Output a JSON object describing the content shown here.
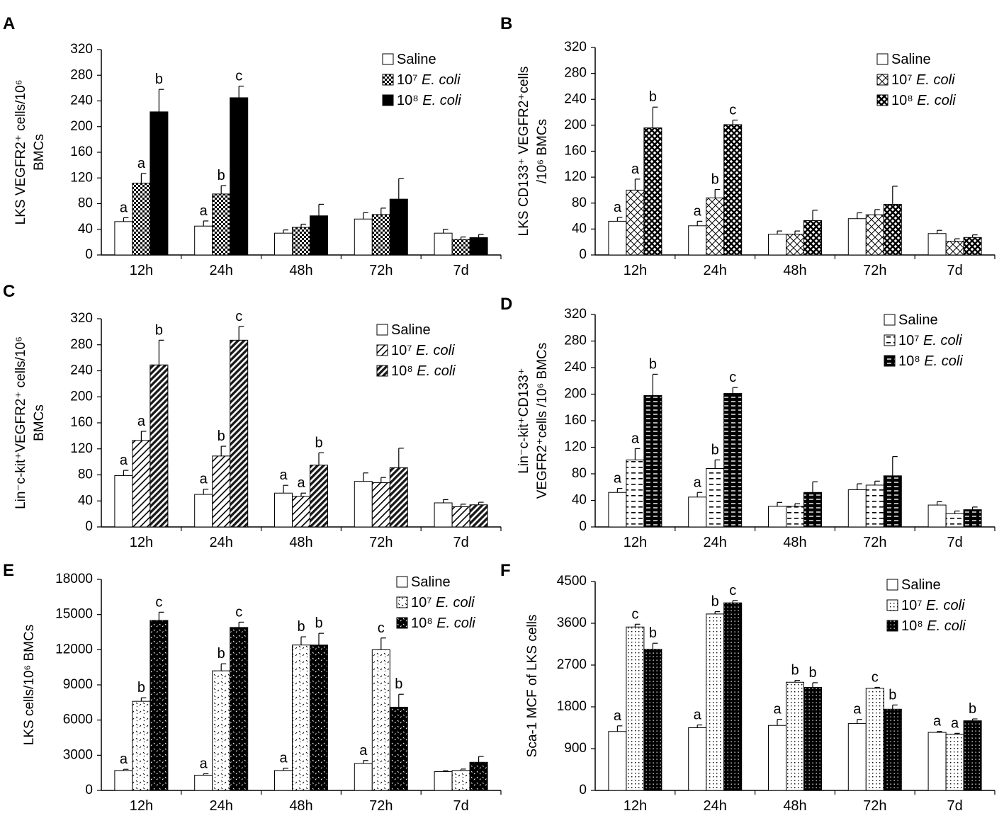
{
  "figure": {
    "title": ""
  },
  "chart_data": [
    {
      "panel": "A",
      "type": "bar",
      "ylabel_lines": [
        "LKS VEGFR2⁺ cells/10⁶",
        "BMCs"
      ],
      "ylim": [
        0,
        320
      ],
      "yticks": [
        0,
        40,
        80,
        120,
        160,
        200,
        240,
        280,
        320
      ],
      "categories": [
        "12h",
        "24h",
        "48h",
        "72h",
        "7d"
      ],
      "legend_loc": "top-right",
      "series": [
        {
          "name": "Saline",
          "legend_text": [
            "Saline",
            ""
          ],
          "pattern": "white",
          "values": [
            52,
            45,
            34,
            56,
            34
          ],
          "errors": [
            6,
            8,
            5,
            10,
            6
          ],
          "labels": [
            "a",
            "a",
            "",
            "",
            ""
          ]
        },
        {
          "name": "10^7 E. coli",
          "legend_text": [
            "10⁷ ",
            "E. coli"
          ],
          "pattern": "check",
          "values": [
            112,
            95,
            43,
            63,
            24
          ],
          "errors": [
            15,
            13,
            5,
            10,
            4
          ],
          "labels": [
            "a",
            "b",
            "",
            "",
            ""
          ]
        },
        {
          "name": "10^8 E. coli",
          "legend_text": [
            "10⁸ ",
            "E. coli"
          ],
          "pattern": "black",
          "values": [
            223,
            245,
            61,
            87,
            27
          ],
          "errors": [
            35,
            18,
            18,
            32,
            5
          ],
          "labels": [
            "b",
            "c",
            "",
            "",
            ""
          ]
        }
      ]
    },
    {
      "panel": "B",
      "type": "bar",
      "ylabel_lines": [
        "LKS CD133⁺ VEGFR2⁺cells",
        "/10⁶ BMCs"
      ],
      "ylim": [
        0,
        320
      ],
      "yticks": [
        0,
        40,
        80,
        120,
        160,
        200,
        240,
        280,
        320
      ],
      "categories": [
        "12h",
        "24h",
        "48h",
        "72h",
        "7d"
      ],
      "legend_loc": "top-right",
      "series": [
        {
          "name": "Saline",
          "legend_text": [
            "Saline",
            ""
          ],
          "pattern": "white",
          "values": [
            52,
            45,
            32,
            56,
            33
          ],
          "errors": [
            6,
            7,
            5,
            9,
            5
          ],
          "labels": [
            "a",
            "a",
            "",
            "",
            ""
          ]
        },
        {
          "name": "10^7 E. coli",
          "legend_text": [
            "10⁷ ",
            "E. coli"
          ],
          "pattern": "cross",
          "values": [
            100,
            88,
            32,
            62,
            21
          ],
          "errors": [
            17,
            13,
            5,
            8,
            4
          ],
          "labels": [
            "a",
            "b",
            "",
            "",
            ""
          ]
        },
        {
          "name": "10^8 E. coli",
          "legend_text": [
            "10⁸ ",
            "E. coli"
          ],
          "pattern": "darkcross",
          "values": [
            196,
            201,
            53,
            78,
            27
          ],
          "errors": [
            32,
            7,
            16,
            28,
            4
          ],
          "labels": [
            "b",
            "c",
            "",
            "",
            ""
          ]
        }
      ]
    },
    {
      "panel": "C",
      "type": "bar",
      "ylabel_lines": [
        "Lin⁻c-kit⁺VEGFR2⁺ cells/10⁶",
        "BMCs"
      ],
      "ylim": [
        0,
        320
      ],
      "yticks": [
        0,
        40,
        80,
        120,
        160,
        200,
        240,
        280,
        320
      ],
      "categories": [
        "12h",
        "24h",
        "48h",
        "72h",
        "7d"
      ],
      "legend_loc": "top-right",
      "series": [
        {
          "name": "Saline",
          "legend_text": [
            "Saline",
            ""
          ],
          "pattern": "white",
          "values": [
            79,
            50,
            52,
            70,
            37
          ],
          "errors": [
            8,
            8,
            12,
            13,
            5
          ],
          "labels": [
            "a",
            "a",
            "a",
            "",
            ""
          ]
        },
        {
          "name": "10^7 E. coli",
          "legend_text": [
            "10⁷ ",
            "E. coli"
          ],
          "pattern": "diag",
          "values": [
            133,
            109,
            47,
            68,
            31
          ],
          "errors": [
            14,
            15,
            5,
            8,
            4
          ],
          "labels": [
            "a",
            "b",
            "a",
            "",
            ""
          ]
        },
        {
          "name": "10^8 E. coli",
          "legend_text": [
            "10⁸ ",
            "E. coli"
          ],
          "pattern": "darkdiag",
          "values": [
            249,
            287,
            95,
            91,
            34
          ],
          "errors": [
            38,
            21,
            19,
            30,
            4
          ],
          "labels": [
            "b",
            "c",
            "b",
            "",
            ""
          ]
        }
      ]
    },
    {
      "panel": "D",
      "type": "bar",
      "ylabel_lines": [
        "Lin⁻c-kit⁺CD133⁺",
        "VEGFR2⁺cells /10⁶ BMCs"
      ],
      "ylim": [
        0,
        320
      ],
      "yticks": [
        0,
        40,
        80,
        120,
        160,
        200,
        240,
        280,
        320
      ],
      "categories": [
        "12h",
        "24h",
        "48h",
        "72h",
        "7d"
      ],
      "legend_loc": "top-right",
      "series": [
        {
          "name": "Saline",
          "legend_text": [
            "Saline",
            ""
          ],
          "pattern": "white",
          "values": [
            52,
            45,
            31,
            56,
            33
          ],
          "errors": [
            6,
            7,
            6,
            9,
            5
          ],
          "labels": [
            "a",
            "a",
            "",
            "",
            ""
          ]
        },
        {
          "name": "10^7 E. coli",
          "legend_text": [
            "10⁷ ",
            "E. coli"
          ],
          "pattern": "dash",
          "values": [
            101,
            88,
            31,
            63,
            20
          ],
          "errors": [
            17,
            13,
            4,
            6,
            4
          ],
          "labels": [
            "a",
            "b",
            "",
            "",
            ""
          ]
        },
        {
          "name": "10^8 E. coli",
          "legend_text": [
            "10⁸ ",
            "E. coli"
          ],
          "pattern": "darkdash",
          "values": [
            198,
            201,
            52,
            77,
            26
          ],
          "errors": [
            32,
            9,
            16,
            29,
            4
          ],
          "labels": [
            "b",
            "c",
            "",
            "",
            ""
          ]
        }
      ]
    },
    {
      "panel": "E",
      "type": "bar",
      "ylabel_lines": [
        "LKS cells/10⁶ BMCs"
      ],
      "ylim": [
        0,
        18000
      ],
      "yticks": [
        0,
        3000,
        6000,
        9000,
        12000,
        15000,
        18000
      ],
      "categories": [
        "12h",
        "24h",
        "48h",
        "72h",
        "7d"
      ],
      "legend_loc": "top-right",
      "series": [
        {
          "name": "Saline",
          "legend_text": [
            "Saline",
            ""
          ],
          "pattern": "white",
          "values": [
            1700,
            1300,
            1700,
            2300,
            1600
          ],
          "errors": [
            100,
            120,
            200,
            250,
            80
          ],
          "labels": [
            "a",
            "a",
            "a",
            "a",
            ""
          ]
        },
        {
          "name": "10^7 E. coli",
          "legend_text": [
            "10⁷ ",
            "E. coli"
          ],
          "pattern": "sparse",
          "values": [
            7600,
            10200,
            12400,
            12000,
            1700
          ],
          "errors": [
            300,
            600,
            700,
            1000,
            120
          ],
          "labels": [
            "b",
            "b",
            "b",
            "c",
            ""
          ]
        },
        {
          "name": "10^8 E. coli",
          "legend_text": [
            "10⁸ ",
            "E. coli"
          ],
          "pattern": "darksparse",
          "values": [
            14500,
            13900,
            12400,
            7100,
            2400
          ],
          "errors": [
            700,
            450,
            1000,
            1100,
            500
          ],
          "labels": [
            "c",
            "c",
            "b",
            "b",
            ""
          ]
        }
      ]
    },
    {
      "panel": "F",
      "type": "bar",
      "ylabel_lines": [
        "Sca-1 MCF of LKS cells"
      ],
      "ylim": [
        0,
        4500
      ],
      "yticks": [
        0,
        900,
        1800,
        2700,
        3600,
        4500
      ],
      "categories": [
        "12h",
        "24h",
        "48h",
        "72h",
        "7d"
      ],
      "legend_loc": "top-right",
      "series": [
        {
          "name": "Saline",
          "legend_text": [
            "Saline",
            ""
          ],
          "pattern": "white",
          "values": [
            1270,
            1350,
            1400,
            1440,
            1250
          ],
          "errors": [
            120,
            60,
            130,
            90,
            20
          ],
          "labels": [
            "a",
            "a",
            "a",
            "a",
            "a"
          ]
        },
        {
          "name": "10^7 E. coli",
          "legend_text": [
            "10⁷ ",
            "E. coli"
          ],
          "pattern": "dots",
          "values": [
            3520,
            3800,
            2330,
            2200,
            1210
          ],
          "errors": [
            60,
            50,
            40,
            20,
            20
          ],
          "labels": [
            "c",
            "b",
            "b",
            "c",
            "a"
          ]
        },
        {
          "name": "10^8 E. coli",
          "legend_text": [
            "10⁸ ",
            "E. coli"
          ],
          "pattern": "darkdots",
          "values": [
            3040,
            4040,
            2220,
            1750,
            1500
          ],
          "errors": [
            130,
            50,
            100,
            90,
            40
          ],
          "labels": [
            "b",
            "c",
            "b",
            "b",
            "b"
          ]
        }
      ]
    }
  ]
}
